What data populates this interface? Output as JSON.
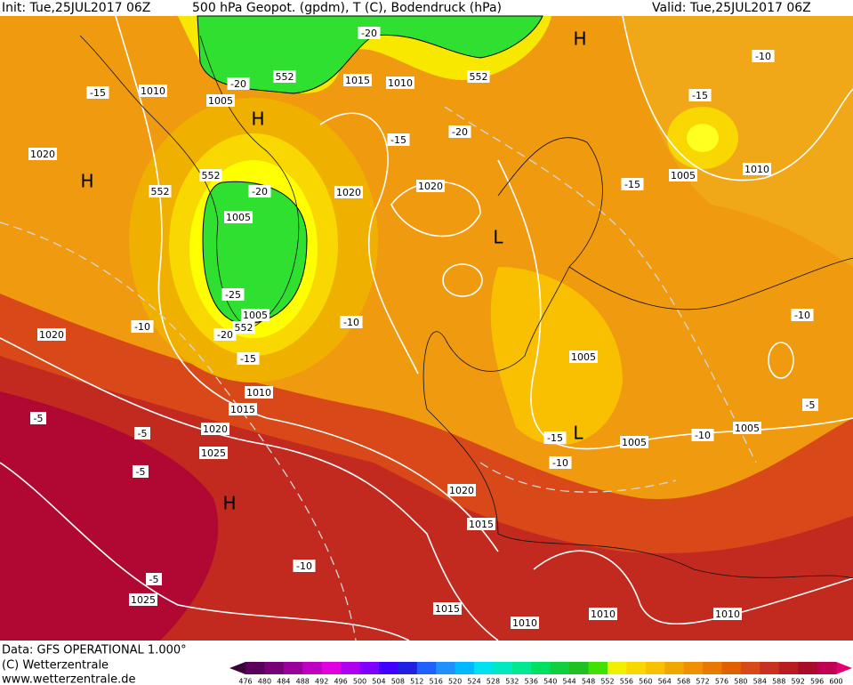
{
  "header": {
    "init": "Init: Tue,25JUL2017 06Z",
    "title": "500 hPa Geopot. (gpdm), T (C), Bodendruck (hPa)",
    "valid": "Valid: Tue,25JUL2017 06Z"
  },
  "map": {
    "labels": [
      "H",
      "H",
      "H",
      "H",
      "L",
      "L",
      "1010",
      "1005",
      "1015",
      "1010",
      "1020",
      "1020",
      "1020",
      "1005",
      "1005",
      "1005",
      "1010",
      "1005",
      "1005",
      "1005",
      "1020",
      "1010",
      "1015",
      "1020",
      "1025",
      "1020",
      "1015",
      "1025",
      "1015",
      "1010",
      "1010",
      "1010",
      "-20",
      "-20",
      "-15",
      "-15",
      "-20",
      "-15",
      "-10",
      "-20",
      "-15",
      "-25",
      "-20",
      "-10",
      "-10",
      "-15",
      "-10",
      "-5",
      "-5",
      "-5",
      "-15",
      "-10",
      "-10",
      "-5",
      "-10",
      "-5",
      "552",
      "552",
      "552",
      "552",
      "552"
    ]
  },
  "footer": {
    "data": "Data: GFS OPERATIONAL 1.000°",
    "copyright": "(C) Wetterzentrale",
    "url": "www.wetterzentrale.de"
  },
  "legend": {
    "labels": [
      476,
      480,
      484,
      488,
      492,
      496,
      500,
      504,
      508,
      512,
      516,
      520,
      524,
      528,
      532,
      536,
      540,
      544,
      548,
      552,
      556,
      560,
      564,
      568,
      572,
      576,
      580,
      584,
      588,
      592,
      596,
      600
    ],
    "colors": [
      "#5a005a",
      "#780078",
      "#9a009a",
      "#c000c0",
      "#e000e0",
      "#b000f0",
      "#8000ff",
      "#4000ff",
      "#2020e0",
      "#2060ff",
      "#2090ff",
      "#00b8ff",
      "#00e0f0",
      "#00e8c0",
      "#00e890",
      "#00e060",
      "#10d040",
      "#20c020",
      "#40e000",
      "#f0f000",
      "#f8d800",
      "#f8c000",
      "#f0a800",
      "#f09000",
      "#e87800",
      "#e06000",
      "#d84818",
      "#c83020",
      "#b81c20",
      "#a80c28",
      "#c00050"
    ]
  }
}
